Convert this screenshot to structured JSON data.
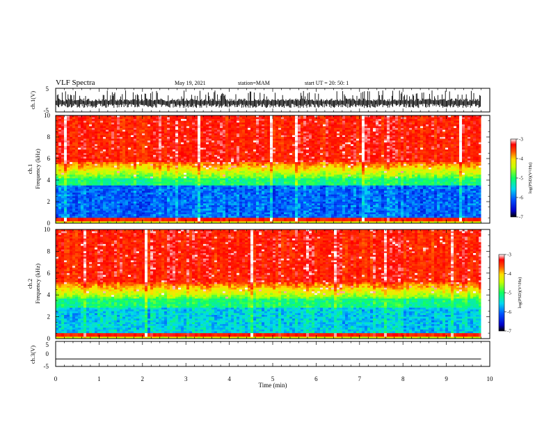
{
  "header": {
    "title": "VLF Spectra",
    "date": "May 19, 2021",
    "station": "station=MAM",
    "start": "start UT = 20: 50: 1"
  },
  "chart_data": [
    {
      "type": "line",
      "name": "ch1-waveform",
      "ylabel": "ch.1(V)",
      "ylim": [
        -5,
        5
      ],
      "yticks": [
        "5",
        "-5"
      ],
      "xlim": [
        0,
        10
      ],
      "data_extent_min": [
        0,
        9.8
      ],
      "trace_description": "dense broadband waveform, mostly between 0 and -3 V with spikes to +4 V"
    },
    {
      "type": "heatmap",
      "name": "ch1-spectrogram",
      "ylabel": "ch.1\nFrequency (kHz)",
      "ylim": [
        0,
        10
      ],
      "yticks": [
        "0",
        "2",
        "4",
        "6",
        "8",
        "10"
      ],
      "xlim": [
        0,
        10
      ],
      "colorbar": {
        "range": [
          -7,
          -3
        ],
        "ticks": [
          "-3",
          "-4",
          "-5",
          "-6",
          "-7"
        ],
        "label": "log(PSD)(V²/Hz)"
      },
      "description": "high power (red) above ~5 kHz, green transition 3.5-5 kHz, low power (blue) below ~3.5 kHz, red line near 0.3 kHz"
    },
    {
      "type": "heatmap",
      "name": "ch2-spectrogram",
      "ylabel": "ch.2\nFrequency (kHz)",
      "ylim": [
        0,
        10
      ],
      "yticks": [
        "0",
        "2",
        "4",
        "6",
        "8",
        "10"
      ],
      "xlim": [
        0,
        10
      ],
      "colorbar": {
        "range": [
          -7,
          -3
        ],
        "ticks": [
          "-3",
          "-4",
          "-5",
          "-6",
          "-7"
        ],
        "label": "log(PSD)(V²/Hz)"
      },
      "description": "high power (red) above ~4.5 kHz, green/cyan 3-4.5 kHz, blue/cyan below ~3 kHz, red band near 0.2 kHz"
    },
    {
      "type": "line",
      "name": "ch3-waveform",
      "ylabel": "ch.3(V)",
      "ylim": [
        -5,
        5
      ],
      "yticks": [
        "5",
        "0",
        "-5"
      ],
      "xlim": [
        0,
        10
      ],
      "series": [
        {
          "x": [
            0,
            9.8
          ],
          "y": [
            -2,
            -2
          ]
        }
      ]
    }
  ],
  "xaxis": {
    "label": "Time (min)",
    "ticks": [
      "0",
      "1",
      "2",
      "3",
      "4",
      "5",
      "6",
      "7",
      "8",
      "9",
      "10"
    ]
  }
}
